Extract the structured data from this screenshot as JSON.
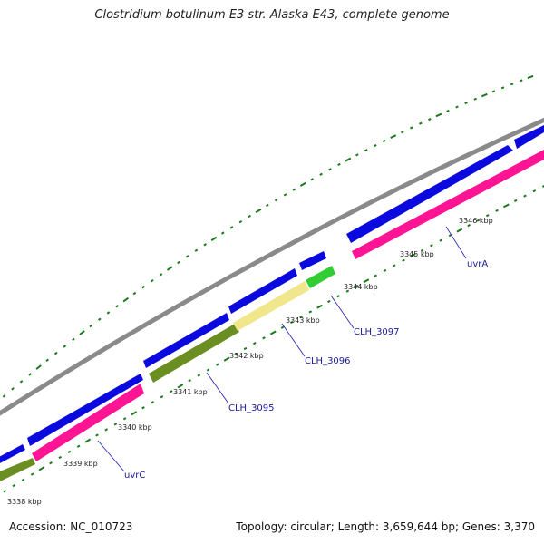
{
  "title": "Clostridium botulinum E3 str. Alaska E43, complete genome",
  "accession_text": "Accession: NC_010723",
  "stats_text": "Topology: circular; Length: 3,659,644 bp; Genes: 3,370",
  "colors": {
    "backbone": "#8a8a8a",
    "cds_forward": "#0a0adf",
    "cds_reverse_magenta": "#ff1493",
    "cds_olive": "#6b8e23",
    "cds_khaki": "#f0e68c",
    "cds_green": "#32cd32",
    "ticks": "#1a7a1a",
    "label_line": "#1a1ab0"
  },
  "kbp_ticks": [
    "3338 kbp",
    "3339 kbp",
    "3340 kbp",
    "3341 kbp",
    "3342 kbp",
    "3343 kbp",
    "3344 kbp",
    "3345 kbp",
    "3346 kbp"
  ],
  "gene_labels": [
    "uvrC",
    "CLH_3095",
    "CLH_3096",
    "CLH_3097",
    "uvrA"
  ]
}
